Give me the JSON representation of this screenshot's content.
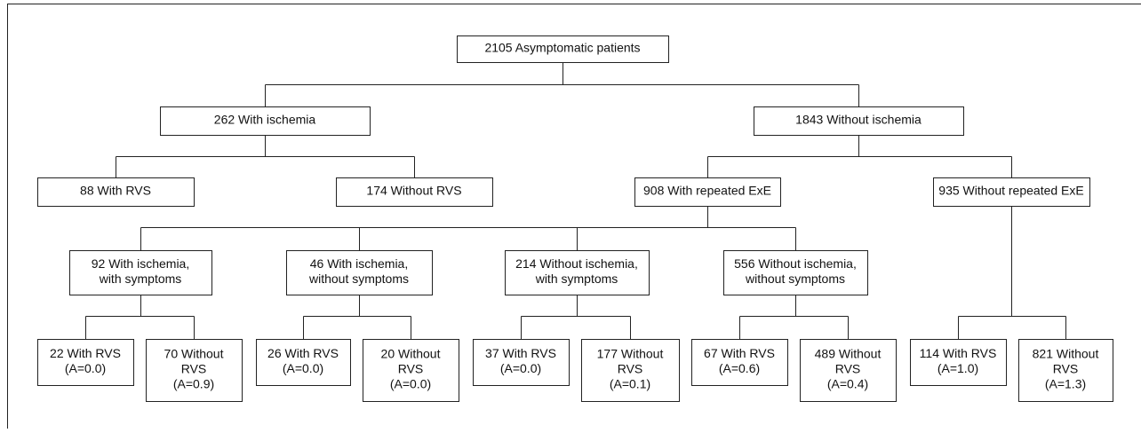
{
  "nodes": [
    {
      "lines": [
        "2105 Asymptomatic patients"
      ]
    },
    {
      "lines": [
        "262 With ischemia"
      ]
    },
    {
      "lines": [
        "1843 Without ischemia"
      ]
    },
    {
      "lines": [
        "88 With RVS"
      ]
    },
    {
      "lines": [
        "174 Without RVS"
      ]
    },
    {
      "lines": [
        "908 With repeated ExE"
      ]
    },
    {
      "lines": [
        "935 Without repeated ExE"
      ]
    },
    {
      "lines": [
        "92 With ischemia,",
        "with symptoms"
      ]
    },
    {
      "lines": [
        "46 With ischemia,",
        "without symptoms"
      ]
    },
    {
      "lines": [
        "214 Without ischemia,",
        "with symptoms"
      ]
    },
    {
      "lines": [
        "556 Without ischemia,",
        "without symptoms"
      ]
    },
    {
      "lines": [
        "22 With RVS",
        "(A=0.0)"
      ]
    },
    {
      "lines": [
        "70 Without",
        "RVS",
        "(A=0.9)"
      ]
    },
    {
      "lines": [
        "26 With RVS",
        "(A=0.0)"
      ]
    },
    {
      "lines": [
        "20 Without",
        "RVS",
        "(A=0.0)"
      ]
    },
    {
      "lines": [
        "37 With RVS",
        "(A=0.0)"
      ]
    },
    {
      "lines": [
        "177 Without",
        "RVS",
        "(A=0.1)"
      ]
    },
    {
      "lines": [
        "67 With RVS",
        "(A=0.6)"
      ]
    },
    {
      "lines": [
        "489 Without",
        "RVS",
        "(A=0.4)"
      ]
    },
    {
      "lines": [
        "114 With RVS",
        "(A=1.0)"
      ]
    },
    {
      "lines": [
        "821 Without",
        "RVS",
        "(A=1.3)"
      ]
    }
  ]
}
